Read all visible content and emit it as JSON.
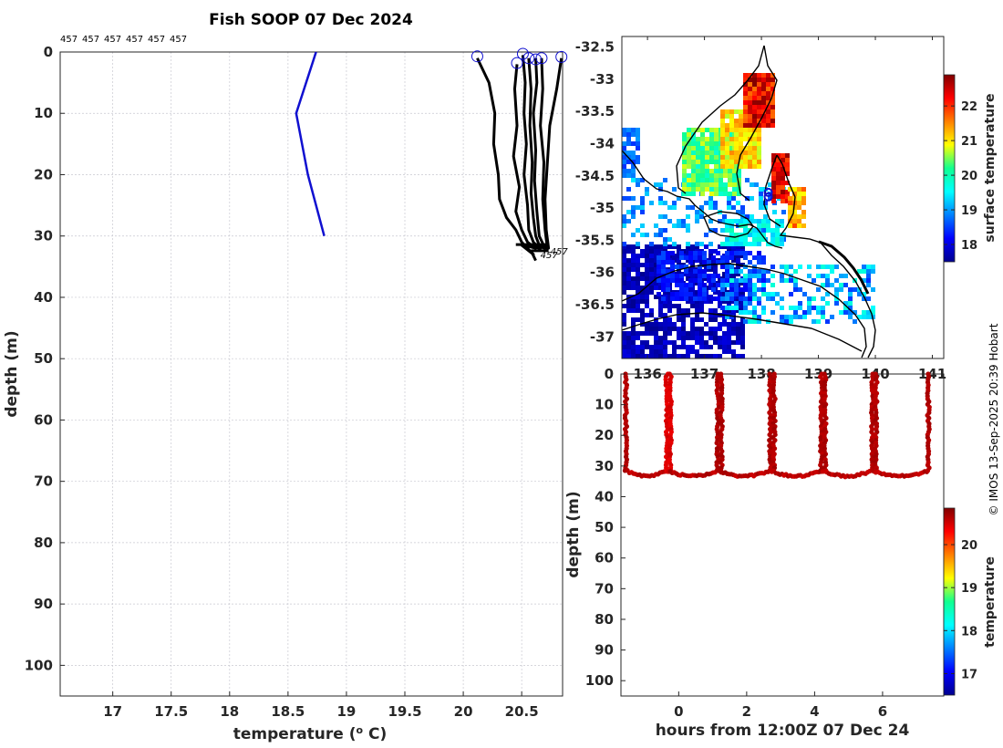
{
  "chart_data": [
    {
      "id": "profile",
      "type": "line",
      "title": "Fish SOOP 07 Dec 2024",
      "xlabel": "temperature (",
      "xlabel_sup": "o",
      "xlabel_end": " C)",
      "ylabel": "depth (m)",
      "xlim": [
        16.55,
        20.85
      ],
      "ylim": [
        0,
        105
      ],
      "xticks": [
        17,
        17.5,
        18,
        18.5,
        19,
        19.5,
        20,
        20.5
      ],
      "yticks": [
        0,
        10,
        20,
        30,
        40,
        50,
        60,
        70,
        80,
        90,
        100
      ],
      "top_labels": [
        "457",
        "457",
        "457",
        "457",
        "457",
        "457"
      ],
      "end_labels": [
        "457",
        "457"
      ],
      "climatology": {
        "color": "#1010d0",
        "temperature": [
          18.74,
          18.57,
          18.67,
          18.81
        ],
        "depth": [
          0,
          10,
          20,
          30
        ]
      },
      "profiles": [
        {
          "temperature": [
            20.12,
            20.22,
            20.27,
            20.26,
            20.3,
            20.31,
            20.37,
            20.45,
            20.5,
            20.55,
            20.6
          ],
          "depth": [
            1,
            5,
            10,
            15,
            20,
            24,
            27,
            29,
            31,
            32,
            33
          ]
        },
        {
          "temperature": [
            20.46,
            20.44,
            20.46,
            20.43,
            20.48,
            20.45,
            20.5,
            20.55,
            20.62
          ],
          "depth": [
            2,
            6,
            12,
            17,
            22,
            26,
            29,
            31,
            32
          ]
        },
        {
          "temperature": [
            20.51,
            20.53,
            20.52,
            20.54,
            20.52,
            20.55,
            20.56,
            20.6,
            20.65
          ],
          "depth": [
            0.5,
            5,
            10,
            15,
            20,
            25,
            29,
            31,
            32
          ]
        },
        {
          "temperature": [
            20.56,
            20.58,
            20.57,
            20.59,
            20.58,
            20.6,
            20.62,
            20.66
          ],
          "depth": [
            1,
            6,
            12,
            18,
            23,
            27,
            30,
            32
          ]
        },
        {
          "temperature": [
            20.62,
            20.63,
            20.6,
            20.62,
            20.61,
            20.63,
            20.65,
            20.7
          ],
          "depth": [
            1,
            5,
            10,
            16,
            21,
            26,
            30,
            32
          ]
        },
        {
          "temperature": [
            20.67,
            20.68,
            20.66,
            20.69,
            20.68,
            20.7,
            20.72
          ],
          "depth": [
            1,
            6,
            12,
            18,
            24,
            29,
            32
          ]
        },
        {
          "temperature": [
            20.84,
            20.8,
            20.74,
            20.72,
            20.7,
            20.71,
            20.73
          ],
          "depth": [
            1,
            6,
            12,
            18,
            24,
            29,
            32
          ]
        }
      ],
      "start_markers": [
        {
          "temperature": 20.12,
          "depth": 0.7
        },
        {
          "temperature": 20.46,
          "depth": 1.8
        },
        {
          "temperature": 20.51,
          "depth": 0.3
        },
        {
          "temperature": 20.56,
          "depth": 1.0
        },
        {
          "temperature": 20.62,
          "depth": 1.2
        },
        {
          "temperature": 20.67,
          "depth": 1.0
        },
        {
          "temperature": 20.84,
          "depth": 0.8
        }
      ]
    },
    {
      "id": "map",
      "type": "heatmap",
      "ylim": [
        -37.35,
        -32.35
      ],
      "yticks": [
        -32.5,
        -33,
        -33.5,
        -34,
        -34.5,
        -35,
        -35.5,
        -36,
        -36.5,
        -37
      ],
      "ytick_labels": [
        "-32.5",
        "-33",
        "-33.5",
        "-34",
        "-34.5",
        "-35",
        "-35.5",
        "-36",
        "-36.5",
        "-37"
      ],
      "xlim": [
        135.55,
        141.2
      ],
      "xticks": [
        136,
        137,
        138,
        139,
        140,
        141
      ],
      "xtick_labels": [
        "136",
        "137",
        "138",
        "139",
        "140",
        "141"
      ],
      "vessel_lon": 138.12,
      "vessel_lat": [
        -34.77,
        -34.84
      ],
      "colorbar": {
        "label": "surface temperature",
        "ticks": [
          18,
          19,
          20,
          21,
          22
        ],
        "range": [
          17.5,
          22.9
        ]
      }
    },
    {
      "id": "section",
      "type": "scatter",
      "xlabel": "hours from 12:00Z 07 Dec 24",
      "ylabel": "depth (m)",
      "xlim": [
        -1.7,
        7.8
      ],
      "ylim": [
        0,
        105
      ],
      "xticks": [
        0,
        2,
        4,
        6
      ],
      "yticks": [
        0,
        10,
        20,
        30,
        40,
        50,
        60,
        70,
        80,
        90,
        100
      ],
      "casts": [
        -1.55,
        -0.35,
        1.15,
        2.7,
        4.2,
        5.7,
        7.35
      ],
      "colorbar": {
        "label": "temperature",
        "ticks": [
          17,
          18,
          19,
          20
        ],
        "range": [
          16.5,
          20.85
        ]
      }
    }
  ],
  "credit": "© IMOS 13-Sep-2025 20:39 Hobart"
}
